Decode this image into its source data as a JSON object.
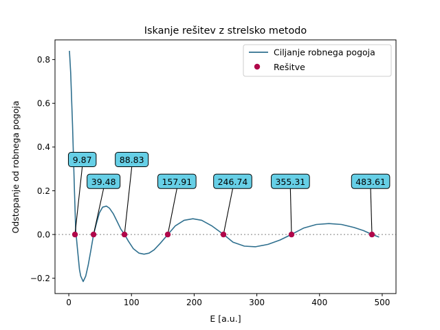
{
  "chart_data": {
    "type": "line",
    "title": "Iskanje rešitev z strelsko metodo",
    "xlabel": "E [a.u.]",
    "ylabel": "Odstopanje od robnega pogoja",
    "xlim": [
      -22,
      522
    ],
    "ylim": [
      -0.27,
      0.89
    ],
    "xticks": [
      0,
      100,
      200,
      300,
      400,
      500
    ],
    "yticks": [
      -0.2,
      0.0,
      0.2,
      0.4,
      0.6,
      0.8
    ],
    "grid": false,
    "legend_position": "top-right",
    "reference_line": {
      "y": 0.0,
      "style": "dotted",
      "color": "#aaaaaa"
    },
    "series": [
      {
        "name": "Ciljanje robnega pogoja",
        "kind": "line",
        "color": "#2e6f8e",
        "points": [
          [
            1,
            0.84
          ],
          [
            3,
            0.74
          ],
          [
            6,
            0.5
          ],
          [
            9,
            0.2
          ],
          [
            11,
            0.02
          ],
          [
            14,
            -0.07
          ],
          [
            17,
            -0.16
          ],
          [
            19,
            -0.19
          ],
          [
            23,
            -0.215
          ],
          [
            27,
            -0.19
          ],
          [
            31,
            -0.14
          ],
          [
            35,
            -0.075
          ],
          [
            39.5,
            0.0
          ],
          [
            44,
            0.05
          ],
          [
            49,
            0.1
          ],
          [
            54,
            0.125
          ],
          [
            60,
            0.13
          ],
          [
            65,
            0.12
          ],
          [
            71,
            0.095
          ],
          [
            77,
            0.06
          ],
          [
            83,
            0.025
          ],
          [
            89,
            0.0
          ],
          [
            95,
            -0.03
          ],
          [
            103,
            -0.065
          ],
          [
            112,
            -0.085
          ],
          [
            120,
            -0.09
          ],
          [
            128,
            -0.085
          ],
          [
            136,
            -0.07
          ],
          [
            146,
            -0.04
          ],
          [
            158,
            0.0
          ],
          [
            170,
            0.04
          ],
          [
            184,
            0.065
          ],
          [
            198,
            0.072
          ],
          [
            212,
            0.065
          ],
          [
            228,
            0.04
          ],
          [
            247,
            0.0
          ],
          [
            262,
            -0.035
          ],
          [
            280,
            -0.053
          ],
          [
            298,
            -0.056
          ],
          [
            318,
            -0.045
          ],
          [
            337,
            -0.025
          ],
          [
            355,
            0.0
          ],
          [
            375,
            0.03
          ],
          [
            395,
            0.046
          ],
          [
            415,
            0.05
          ],
          [
            435,
            0.046
          ],
          [
            455,
            0.032
          ],
          [
            470,
            0.018
          ],
          [
            484,
            0.0
          ],
          [
            495,
            -0.012
          ]
        ]
      },
      {
        "name": "Rešitve",
        "kind": "scatter",
        "color": "#b0074a",
        "x": [
          9.87,
          39.48,
          88.83,
          157.91,
          246.74,
          355.31,
          483.61
        ],
        "y": [
          0,
          0,
          0,
          0,
          0,
          0,
          0
        ]
      }
    ],
    "annotations": [
      {
        "text": "9.87",
        "x": 9.87,
        "y": 0.0,
        "text_x": 21.5,
        "text_y": 0.31
      },
      {
        "text": "39.48",
        "x": 39.48,
        "y": 0.0,
        "text_x": 55.5,
        "text_y": 0.21
      },
      {
        "text": "88.83",
        "x": 88.83,
        "y": 0.0,
        "text_x": 100.5,
        "text_y": 0.31
      },
      {
        "text": "157.91",
        "x": 157.91,
        "y": 0.0,
        "text_x": 172.5,
        "text_y": 0.21
      },
      {
        "text": "246.74",
        "x": 246.74,
        "y": 0.0,
        "text_x": 261.5,
        "text_y": 0.21
      },
      {
        "text": "355.31",
        "x": 355.31,
        "y": 0.0,
        "text_x": 353.5,
        "text_y": 0.21
      },
      {
        "text": "483.61",
        "x": 483.61,
        "y": 0.0,
        "text_x": 481.5,
        "text_y": 0.21
      }
    ],
    "annotation_style": {
      "box_fill": "#66cfe6",
      "box_stroke": "#000000"
    }
  }
}
